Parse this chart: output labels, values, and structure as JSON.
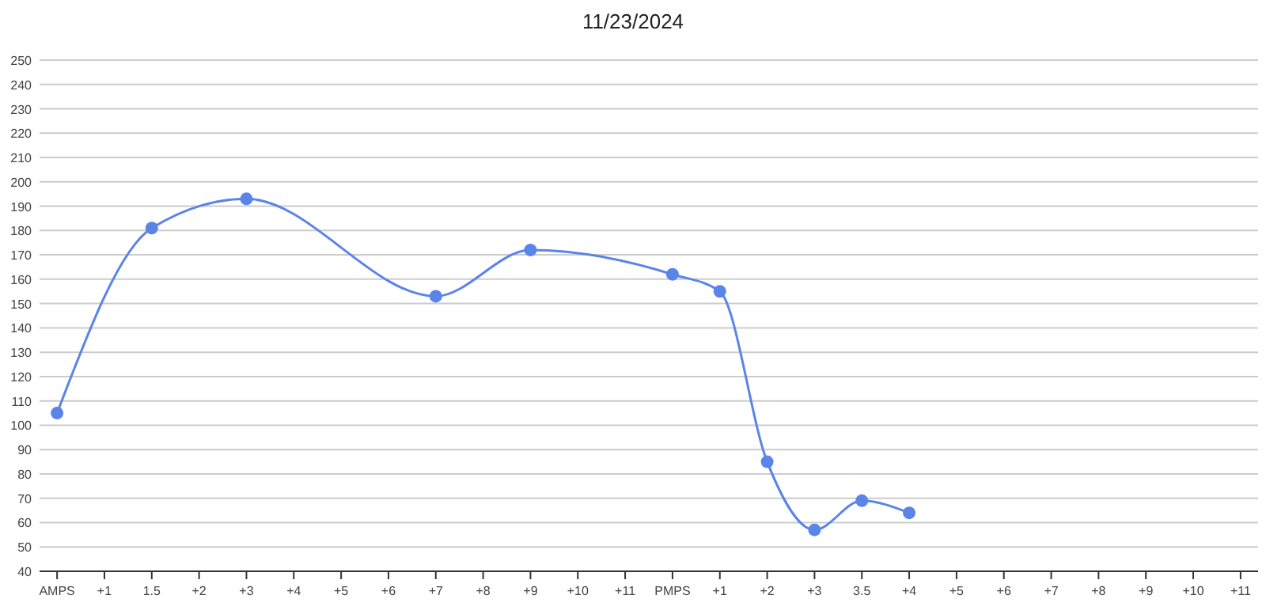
{
  "chart_data": {
    "type": "line",
    "title": "11/23/2024",
    "categories": [
      "AMPS",
      "+1",
      "1.5",
      "+2",
      "+3",
      "+4",
      "+5",
      "+6",
      "+7",
      "+8",
      "+9",
      "+10",
      "+11",
      "PMPS",
      "+1",
      "+2",
      "+3",
      "3.5",
      "+4",
      "+5",
      "+6",
      "+7",
      "+8",
      "+9",
      "+10",
      "+11"
    ],
    "series": [
      {
        "color": "#5b84e8",
        "values": [
          105,
          null,
          181,
          null,
          193,
          null,
          null,
          null,
          153,
          null,
          172,
          null,
          null,
          162,
          155,
          85,
          57,
          69,
          64,
          null,
          null,
          null,
          null,
          null,
          null,
          null
        ]
      }
    ],
    "ylim": [
      40,
      250
    ],
    "yticks": [
      40,
      50,
      60,
      70,
      80,
      90,
      100,
      110,
      120,
      130,
      140,
      150,
      160,
      170,
      180,
      190,
      200,
      210,
      220,
      230,
      240,
      250
    ],
    "grid": "y",
    "marker": "circle"
  }
}
